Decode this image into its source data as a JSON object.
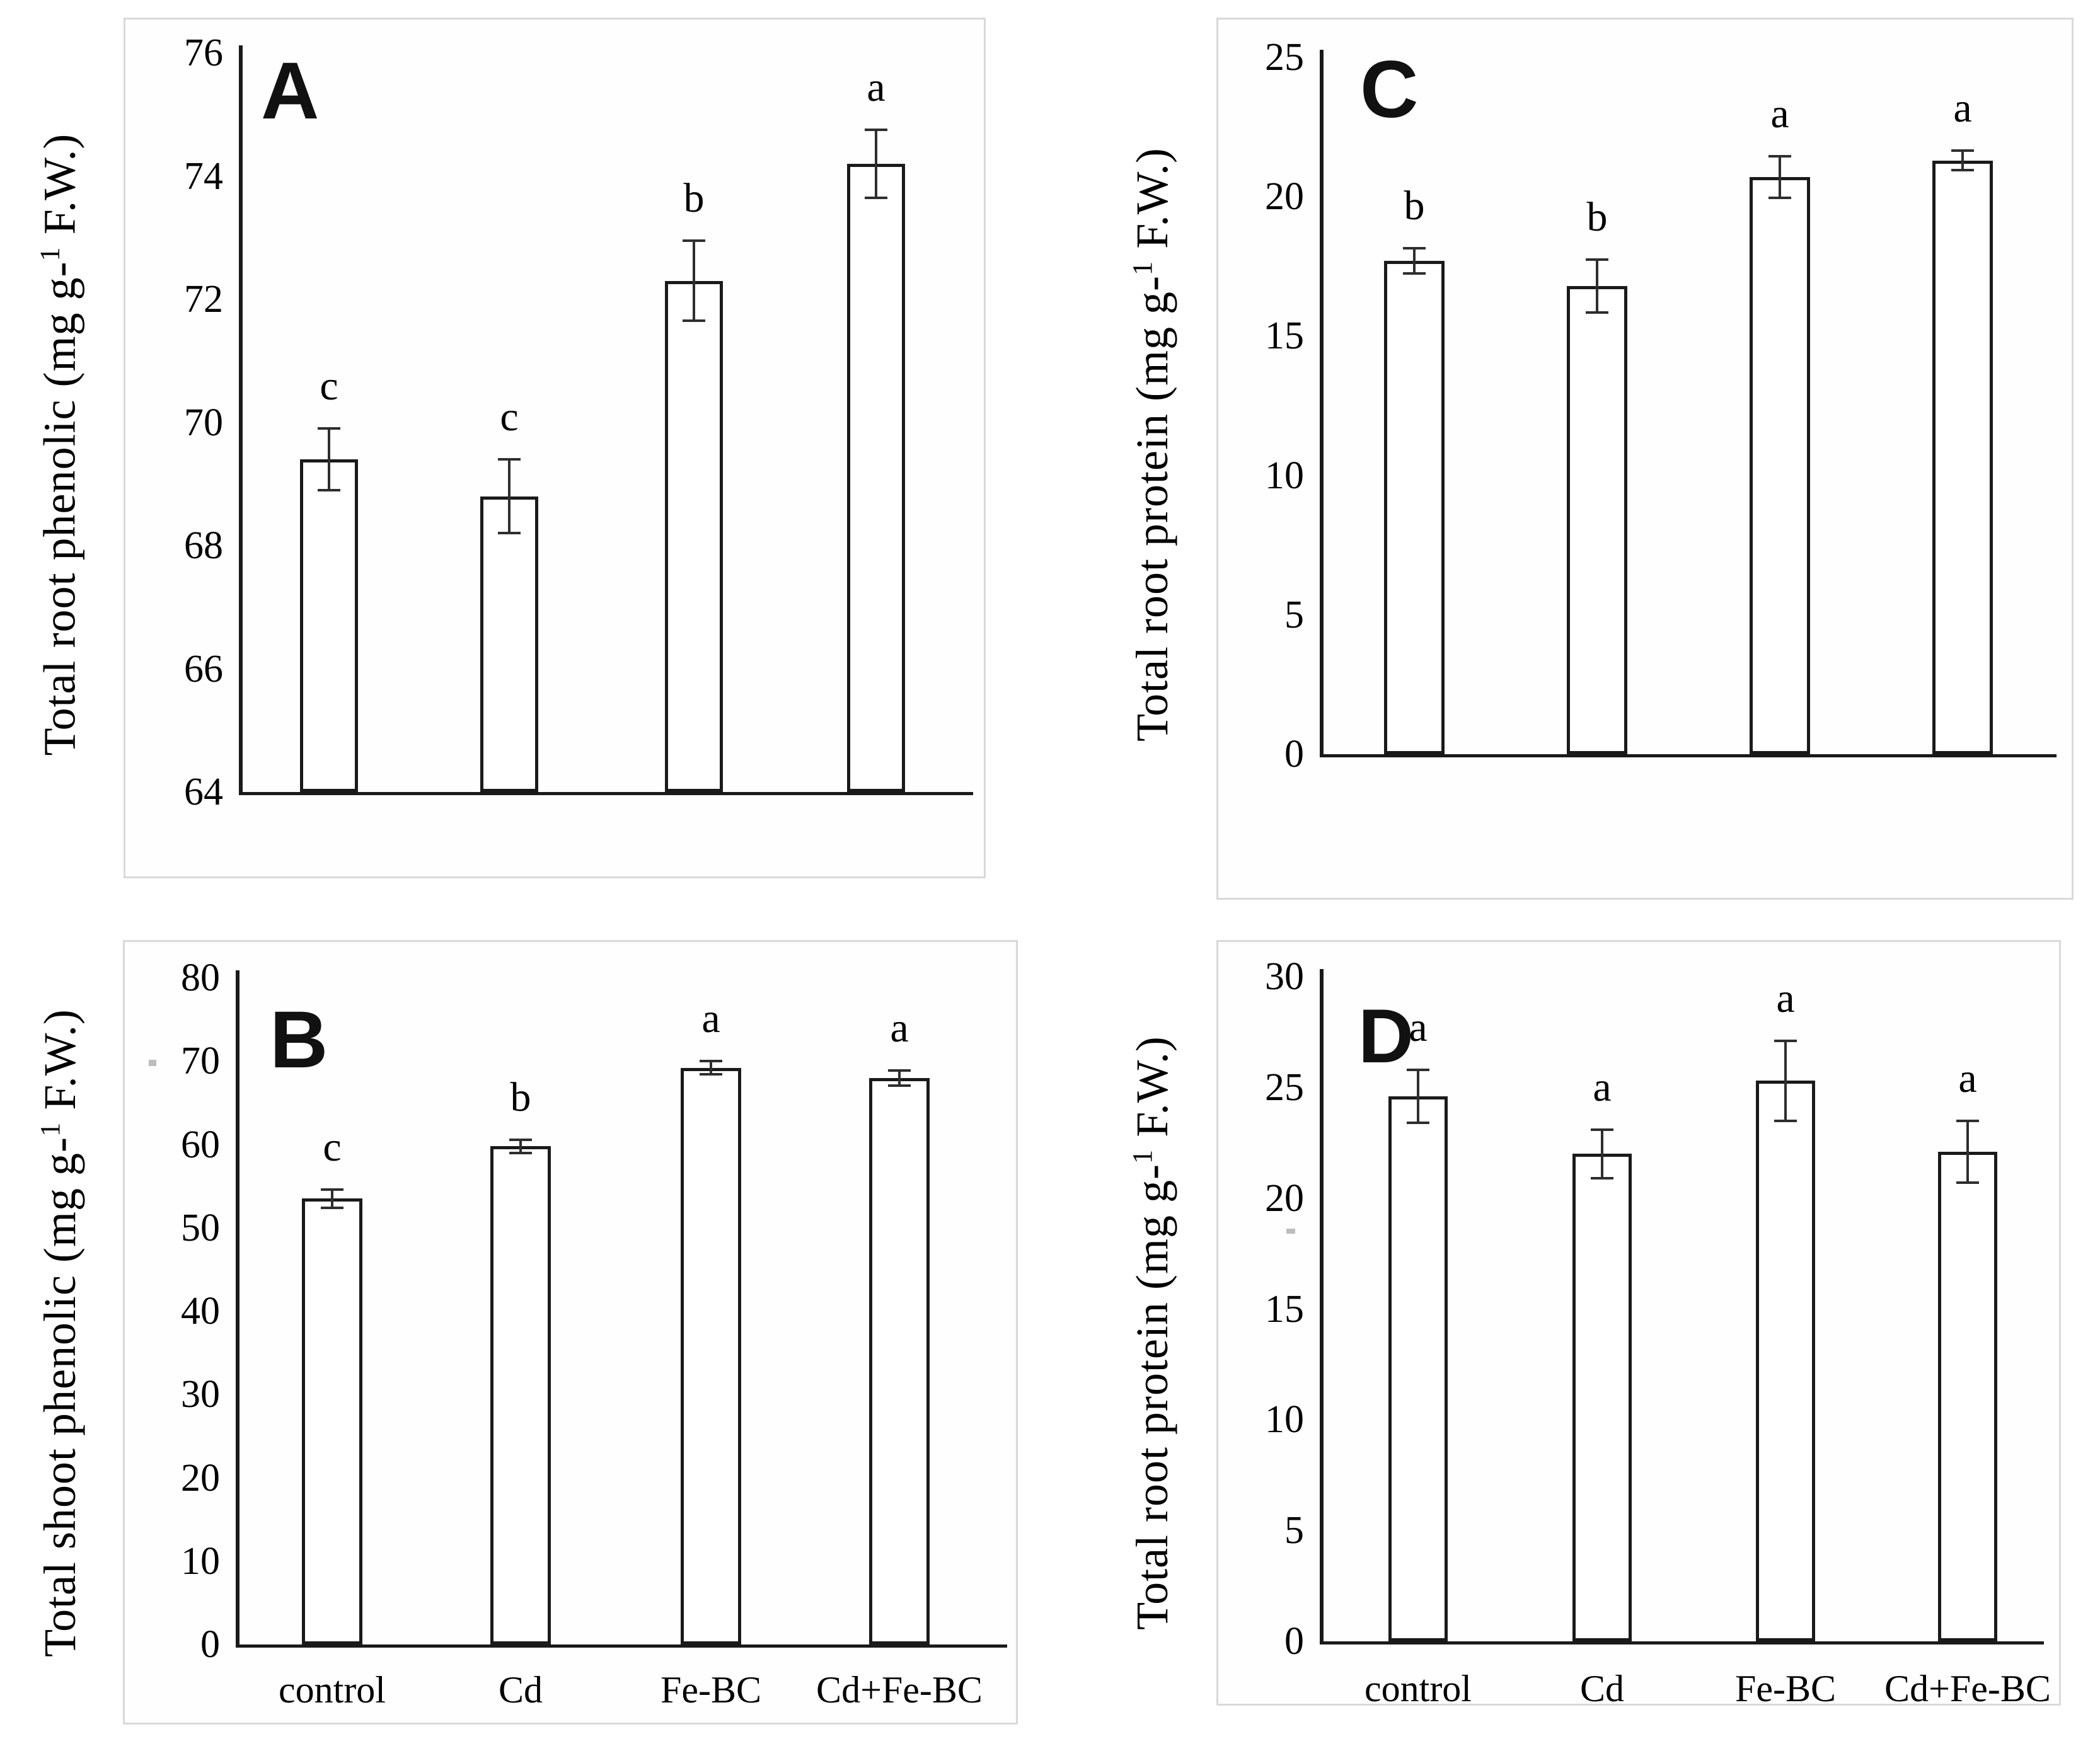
{
  "figure": {
    "description_colors": {
      "background": "#ffffff",
      "bar_fill": "#ffffff",
      "bar_stroke": "#1a1a1a",
      "axis": "#1a1a1a",
      "error_bar": "#2e2e2e",
      "panel_border": "#d9d9d9",
      "text": "#000000"
    }
  },
  "categories": [
    "control",
    "Cd",
    "Fe-BC",
    "Cd+Fe-BC"
  ],
  "chart_data": [
    {
      "id": "A",
      "type": "bar",
      "panel_label": "A",
      "ylabel": "Total root phenolic (mg g-1 F.W.)",
      "ylabel_prefix": "Total root phenolic (mg g-",
      "ylabel_sup": "1",
      "ylabel_suffix": " F.W.)",
      "categories": [
        "control",
        "Cd",
        "Fe-BC",
        "Cd+Fe-BC"
      ],
      "values": [
        69.4,
        68.8,
        72.3,
        74.2
      ],
      "errors": [
        0.5,
        0.6,
        0.65,
        0.55
      ],
      "sig_letters": [
        "c",
        "c",
        "b",
        "a"
      ],
      "ylim": [
        64,
        76
      ],
      "yticks": [
        76,
        74,
        72,
        70,
        68,
        66,
        64
      ],
      "show_x_labels": false,
      "grid": false,
      "legend": false
    },
    {
      "id": "C",
      "type": "bar",
      "panel_label": "C",
      "ylabel": "Total root protein (mg g-1 F.W.)",
      "ylabel_prefix": "Total root protein (mg g-",
      "ylabel_sup": "1",
      "ylabel_suffix": " F.W.)",
      "categories": [
        "control",
        "Cd",
        "Fe-BC",
        "Cd+Fe-BC"
      ],
      "values": [
        17.7,
        16.8,
        20.7,
        21.3
      ],
      "errors": [
        0.45,
        0.95,
        0.75,
        0.35
      ],
      "sig_letters": [
        "b",
        "b",
        "a",
        "a"
      ],
      "ylim": [
        0,
        25
      ],
      "yticks": [
        25,
        20,
        15,
        10,
        5,
        0
      ],
      "show_x_labels": false,
      "grid": false,
      "legend": false
    },
    {
      "id": "B",
      "type": "bar",
      "panel_label": "B",
      "ylabel": "Total shoot phenolic (mg g-1 F.W.)",
      "ylabel_prefix": "Total shoot phenolic (mg g-",
      "ylabel_sup": "1",
      "ylabel_suffix": " F.W.)",
      "categories": [
        "control",
        "Cd",
        "Fe-BC",
        "Cd+Fe-BC"
      ],
      "values": [
        53.5,
        59.8,
        69.2,
        68.0
      ],
      "errors": [
        1.1,
        0.8,
        0.8,
        0.9
      ],
      "sig_letters": [
        "c",
        "b",
        "a",
        "a"
      ],
      "ylim": [
        0,
        80
      ],
      "yticks": [
        80,
        70,
        60,
        50,
        40,
        30,
        20,
        10,
        0
      ],
      "show_x_labels": true,
      "grid": false,
      "legend": false
    },
    {
      "id": "D",
      "type": "bar",
      "panel_label": "D",
      "ylabel": "Total root protein (mg g-1 F.W.)",
      "ylabel_prefix": "Total root protein (mg g-",
      "ylabel_sup": "1",
      "ylabel_suffix": " F.W.)",
      "categories": [
        "control",
        "Cd",
        "Fe-BC",
        "Cd+Fe-BC"
      ],
      "values": [
        24.6,
        22.0,
        25.3,
        22.1
      ],
      "errors": [
        1.2,
        1.1,
        1.8,
        1.4
      ],
      "sig_letters": [
        "a",
        "a",
        "a",
        "a"
      ],
      "ylim": [
        0,
        30
      ],
      "yticks": [
        30,
        25,
        20,
        15,
        10,
        5,
        0
      ],
      "show_x_labels": true,
      "grid": false,
      "legend": false
    }
  ]
}
